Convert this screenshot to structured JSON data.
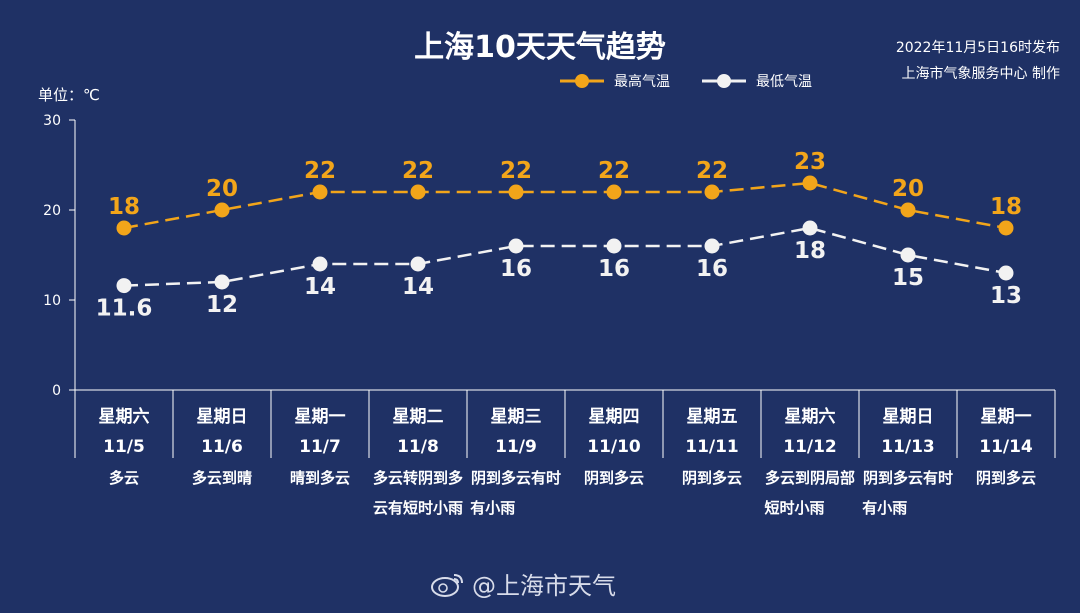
{
  "title": "上海10天天气趋势",
  "publish": {
    "line1": "2022年11月5日16时发布",
    "line2": "上海市气象服务中心 制作"
  },
  "watermark": "@上海市天气",
  "colors": {
    "background": "#1f3165",
    "high": "#f2a51a",
    "low": "#f2f2f2",
    "axis": "#ffffff"
  },
  "chart_data": {
    "type": "line",
    "title": "上海10天天气趋势",
    "ylabel": "单位：℃",
    "ylim": [
      0,
      30
    ],
    "yticks": [
      0,
      10,
      20,
      30
    ],
    "grid": false,
    "legend_position": "top-right",
    "categories": [
      {
        "weekday": "星期六",
        "date": "11/5",
        "weather": "多云"
      },
      {
        "weekday": "星期日",
        "date": "11/6",
        "weather": "多云到晴"
      },
      {
        "weekday": "星期一",
        "date": "11/7",
        "weather": "晴到多云"
      },
      {
        "weekday": "星期二",
        "date": "11/8",
        "weather": "多云转阴到多云有短时小雨"
      },
      {
        "weekday": "星期三",
        "date": "11/9",
        "weather": "阴到多云有时有小雨"
      },
      {
        "weekday": "星期四",
        "date": "11/10",
        "weather": "阴到多云"
      },
      {
        "weekday": "星期五",
        "date": "11/11",
        "weather": "阴到多云"
      },
      {
        "weekday": "星期六",
        "date": "11/12",
        "weather": "多云到阴局部短时小雨"
      },
      {
        "weekday": "星期日",
        "date": "11/13",
        "weather": "阴到多云有时有小雨"
      },
      {
        "weekday": "星期一",
        "date": "11/14",
        "weather": "阴到多云"
      }
    ],
    "series": [
      {
        "name": "最高气温",
        "color": "#f2a51a",
        "values": [
          18,
          20,
          22,
          22,
          22,
          22,
          22,
          23,
          20,
          18
        ]
      },
      {
        "name": "最低气温",
        "color": "#f2f2f2",
        "values": [
          11.6,
          12,
          14,
          14,
          16,
          16,
          16,
          18,
          15,
          13
        ]
      }
    ]
  }
}
